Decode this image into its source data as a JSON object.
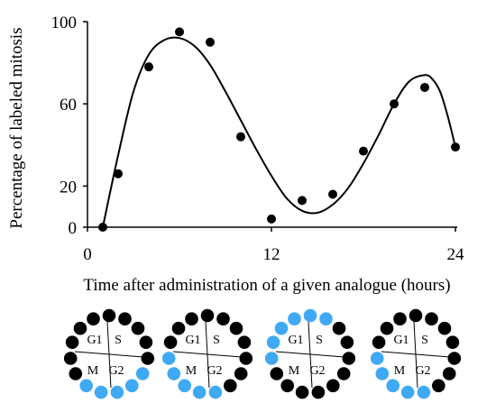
{
  "chart_data": {
    "type": "scatter",
    "xlabel": "Time after administration of a given analogue (hours)",
    "ylabel": "Percentage of labeled mitosis",
    "xlim": [
      0,
      24
    ],
    "ylim": [
      0,
      100
    ],
    "xticks": [
      0,
      12,
      24
    ],
    "yticks": [
      0,
      20,
      60,
      100
    ],
    "grid": false,
    "series": [
      {
        "kind": "points",
        "color": "#000000",
        "points": [
          {
            "x": 1,
            "y": 0
          },
          {
            "x": 2,
            "y": 26
          },
          {
            "x": 4,
            "y": 78
          },
          {
            "x": 6,
            "y": 95
          },
          {
            "x": 8,
            "y": 90
          },
          {
            "x": 10,
            "y": 44
          },
          {
            "x": 12,
            "y": 4
          },
          {
            "x": 14,
            "y": 13
          },
          {
            "x": 16,
            "y": 16
          },
          {
            "x": 18,
            "y": 37
          },
          {
            "x": 20,
            "y": 60
          },
          {
            "x": 22,
            "y": 68
          },
          {
            "x": 24,
            "y": 39
          }
        ]
      },
      {
        "kind": "fitted-curve",
        "color": "#000000",
        "points": [
          {
            "x": 1,
            "y": 0
          },
          {
            "x": 2,
            "y": 35
          },
          {
            "x": 3,
            "y": 66
          },
          {
            "x": 4,
            "y": 84
          },
          {
            "x": 5,
            "y": 91
          },
          {
            "x": 6,
            "y": 92
          },
          {
            "x": 7,
            "y": 88
          },
          {
            "x": 8,
            "y": 79
          },
          {
            "x": 9,
            "y": 66
          },
          {
            "x": 10,
            "y": 52
          },
          {
            "x": 11,
            "y": 38
          },
          {
            "x": 12,
            "y": 25
          },
          {
            "x": 13,
            "y": 14
          },
          {
            "x": 14,
            "y": 8
          },
          {
            "x": 15,
            "y": 7
          },
          {
            "x": 16,
            "y": 11
          },
          {
            "x": 17,
            "y": 19
          },
          {
            "x": 18,
            "y": 31
          },
          {
            "x": 19,
            "y": 45
          },
          {
            "x": 20,
            "y": 60
          },
          {
            "x": 21,
            "y": 71
          },
          {
            "x": 22,
            "y": 74
          },
          {
            "x": 22.5,
            "y": 72
          },
          {
            "x": 23,
            "y": 66
          },
          {
            "x": 23.5,
            "y": 54
          },
          {
            "x": 24,
            "y": 39
          }
        ]
      }
    ]
  },
  "cell_cycle_diagrams": {
    "phase_labels": {
      "top_left": "G1",
      "top_right": "S",
      "bottom_left": "M",
      "bottom_right": "G2"
    },
    "colors": {
      "labeled": "#3fa9f5",
      "unlabeled": "#000000"
    },
    "diagrams": [
      {
        "dots": [
          "black",
          "black",
          "black",
          "black",
          "black",
          "blue",
          "blue",
          "blue",
          "blue",
          "blue",
          "black",
          "black",
          "black",
          "black",
          "black"
        ]
      },
      {
        "dots": [
          "black",
          "black",
          "black",
          "black",
          "black",
          "black",
          "black",
          "blue",
          "blue",
          "blue",
          "blue",
          "blue",
          "black",
          "black",
          "black"
        ]
      },
      {
        "dots": [
          "blue",
          "blue",
          "black",
          "black",
          "black",
          "black",
          "black",
          "black",
          "black",
          "black",
          "black",
          "blue",
          "blue",
          "blue",
          "blue"
        ]
      },
      {
        "dots": [
          "black",
          "black",
          "black",
          "black",
          "black",
          "black",
          "black",
          "blue",
          "blue",
          "blue",
          "blue",
          "blue",
          "black",
          "black",
          "black"
        ]
      }
    ]
  }
}
